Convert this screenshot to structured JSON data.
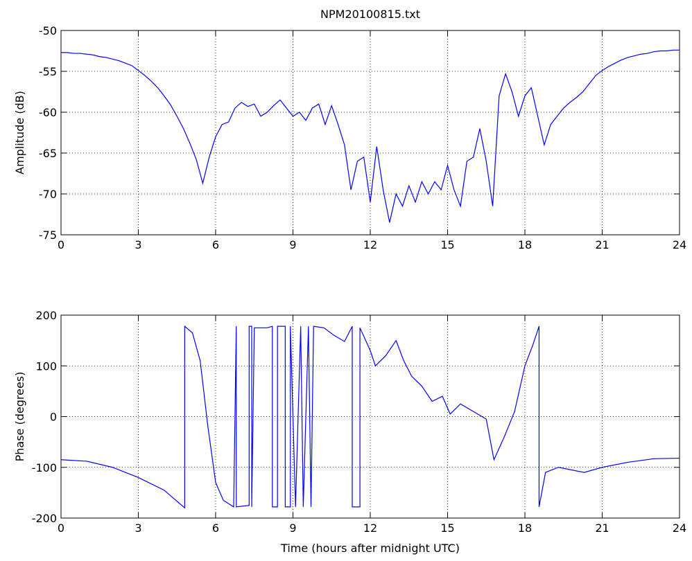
{
  "chart_data": [
    {
      "type": "line",
      "title": "NPM20100815.txt",
      "ylabel": "Amplitude (dB)",
      "x": [
        0,
        0.25,
        0.5,
        0.75,
        1,
        1.25,
        1.5,
        1.75,
        2,
        2.25,
        2.5,
        2.75,
        3,
        3.25,
        3.5,
        3.75,
        4,
        4.25,
        4.5,
        4.75,
        5,
        5.25,
        5.5,
        5.75,
        6,
        6.25,
        6.5,
        6.75,
        7,
        7.25,
        7.5,
        7.75,
        8,
        8.25,
        8.5,
        8.75,
        9,
        9.25,
        9.5,
        9.75,
        10,
        10.25,
        10.5,
        10.75,
        11,
        11.25,
        11.5,
        11.75,
        12,
        12.25,
        12.5,
        12.75,
        13,
        13.25,
        13.5,
        13.75,
        14,
        14.25,
        14.5,
        14.75,
        15,
        15.25,
        15.5,
        15.75,
        16,
        16.25,
        16.5,
        16.75,
        17,
        17.25,
        17.5,
        17.75,
        18,
        18.25,
        18.5,
        18.75,
        19,
        19.25,
        19.5,
        19.75,
        20,
        20.25,
        20.5,
        20.75,
        21,
        21.25,
        21.5,
        21.75,
        22,
        22.25,
        22.5,
        22.75,
        23,
        23.25,
        23.5,
        23.75,
        24
      ],
      "values": [
        -52.7,
        -52.7,
        -52.8,
        -52.8,
        -52.9,
        -53.0,
        -53.2,
        -53.3,
        -53.5,
        -53.7,
        -54.0,
        -54.3,
        -54.9,
        -55.5,
        -56.2,
        -57.0,
        -58.0,
        -59.1,
        -60.5,
        -62.0,
        -63.8,
        -65.8,
        -68.7,
        -65.5,
        -63.0,
        -61.5,
        -61.2,
        -59.5,
        -58.8,
        -59.3,
        -59.0,
        -60.5,
        -60.0,
        -59.2,
        -58.5,
        -59.5,
        -60.5,
        -60.0,
        -61.0,
        -59.5,
        -59.0,
        -61.5,
        -59.2,
        -61.5,
        -64.0,
        -69.5,
        -66.0,
        -65.5,
        -71.0,
        -64.2,
        -69.5,
        -73.5,
        -70.0,
        -71.5,
        -69.0,
        -71.0,
        -68.5,
        -70.0,
        -68.5,
        -69.5,
        -66.5,
        -69.5,
        -71.5,
        -66.0,
        -65.5,
        -62.0,
        -66.0,
        -71.5,
        -58.0,
        -55.3,
        -57.5,
        -60.5,
        -58.0,
        -57.0,
        -60.5,
        -64.0,
        -61.5,
        -60.5,
        -59.5,
        -58.8,
        -58.2,
        -57.5,
        -56.5,
        -55.5,
        -54.9,
        -54.4,
        -54.0,
        -53.6,
        -53.3,
        -53.1,
        -52.9,
        -52.8,
        -52.6,
        -52.5,
        -52.5,
        -52.4,
        -52.4
      ],
      "color": "#0000ff",
      "xlim": [
        0,
        24
      ],
      "xticks": [
        0,
        3,
        6,
        9,
        12,
        15,
        18,
        21,
        24
      ],
      "ylim": [
        -75,
        -50
      ],
      "yticks": [
        -75,
        -70,
        -65,
        -60,
        -55,
        -50
      ],
      "grid": true
    },
    {
      "type": "line",
      "ylabel": "Phase (degrees)",
      "xlabel": "Time (hours after midnight UTC)",
      "x": [
        0,
        1,
        2,
        3,
        4,
        4.8,
        4.8,
        5.1,
        5.4,
        5.7,
        6,
        6.3,
        6.7,
        6.8,
        6.8,
        7.3,
        7.3,
        7.4,
        7.4,
        7.5,
        8,
        8.2,
        8.2,
        8.4,
        8.4,
        8.7,
        8.7,
        8.9,
        8.9,
        9.1,
        9.3,
        9.4,
        9.6,
        9.7,
        9.8,
        10.2,
        10.6,
        11,
        11.3,
        11.3,
        11.6,
        11.6,
        12,
        12.2,
        12.6,
        13,
        13.3,
        13.6,
        14,
        14.4,
        14.8,
        15.1,
        15.5,
        16,
        16.5,
        16.8,
        17.2,
        17.6,
        18,
        18.3,
        18.55,
        18.55,
        18.8,
        19.3,
        20.3,
        21,
        22,
        23,
        24
      ],
      "values": [
        -85,
        -88,
        -100,
        -120,
        -145,
        -180,
        178,
        165,
        110,
        -20,
        -130,
        -165,
        -178,
        178,
        -178,
        -175,
        178,
        178,
        -178,
        175,
        175,
        178,
        -178,
        -178,
        178,
        178,
        -178,
        -178,
        178,
        -178,
        178,
        -178,
        178,
        -178,
        178,
        175,
        160,
        148,
        178,
        -178,
        -178,
        175,
        130,
        100,
        120,
        150,
        110,
        80,
        60,
        30,
        40,
        5,
        25,
        10,
        -5,
        -85,
        -40,
        10,
        100,
        140,
        178,
        -178,
        -110,
        -100,
        -110,
        -100,
        -90,
        -83,
        -82
      ],
      "color": "#0000ff",
      "xlim": [
        0,
        24
      ],
      "xticks": [
        0,
        3,
        6,
        9,
        12,
        15,
        18,
        21,
        24
      ],
      "ylim": [
        -200,
        200
      ],
      "yticks": [
        -200,
        -100,
        0,
        100,
        200
      ],
      "grid": true
    }
  ]
}
